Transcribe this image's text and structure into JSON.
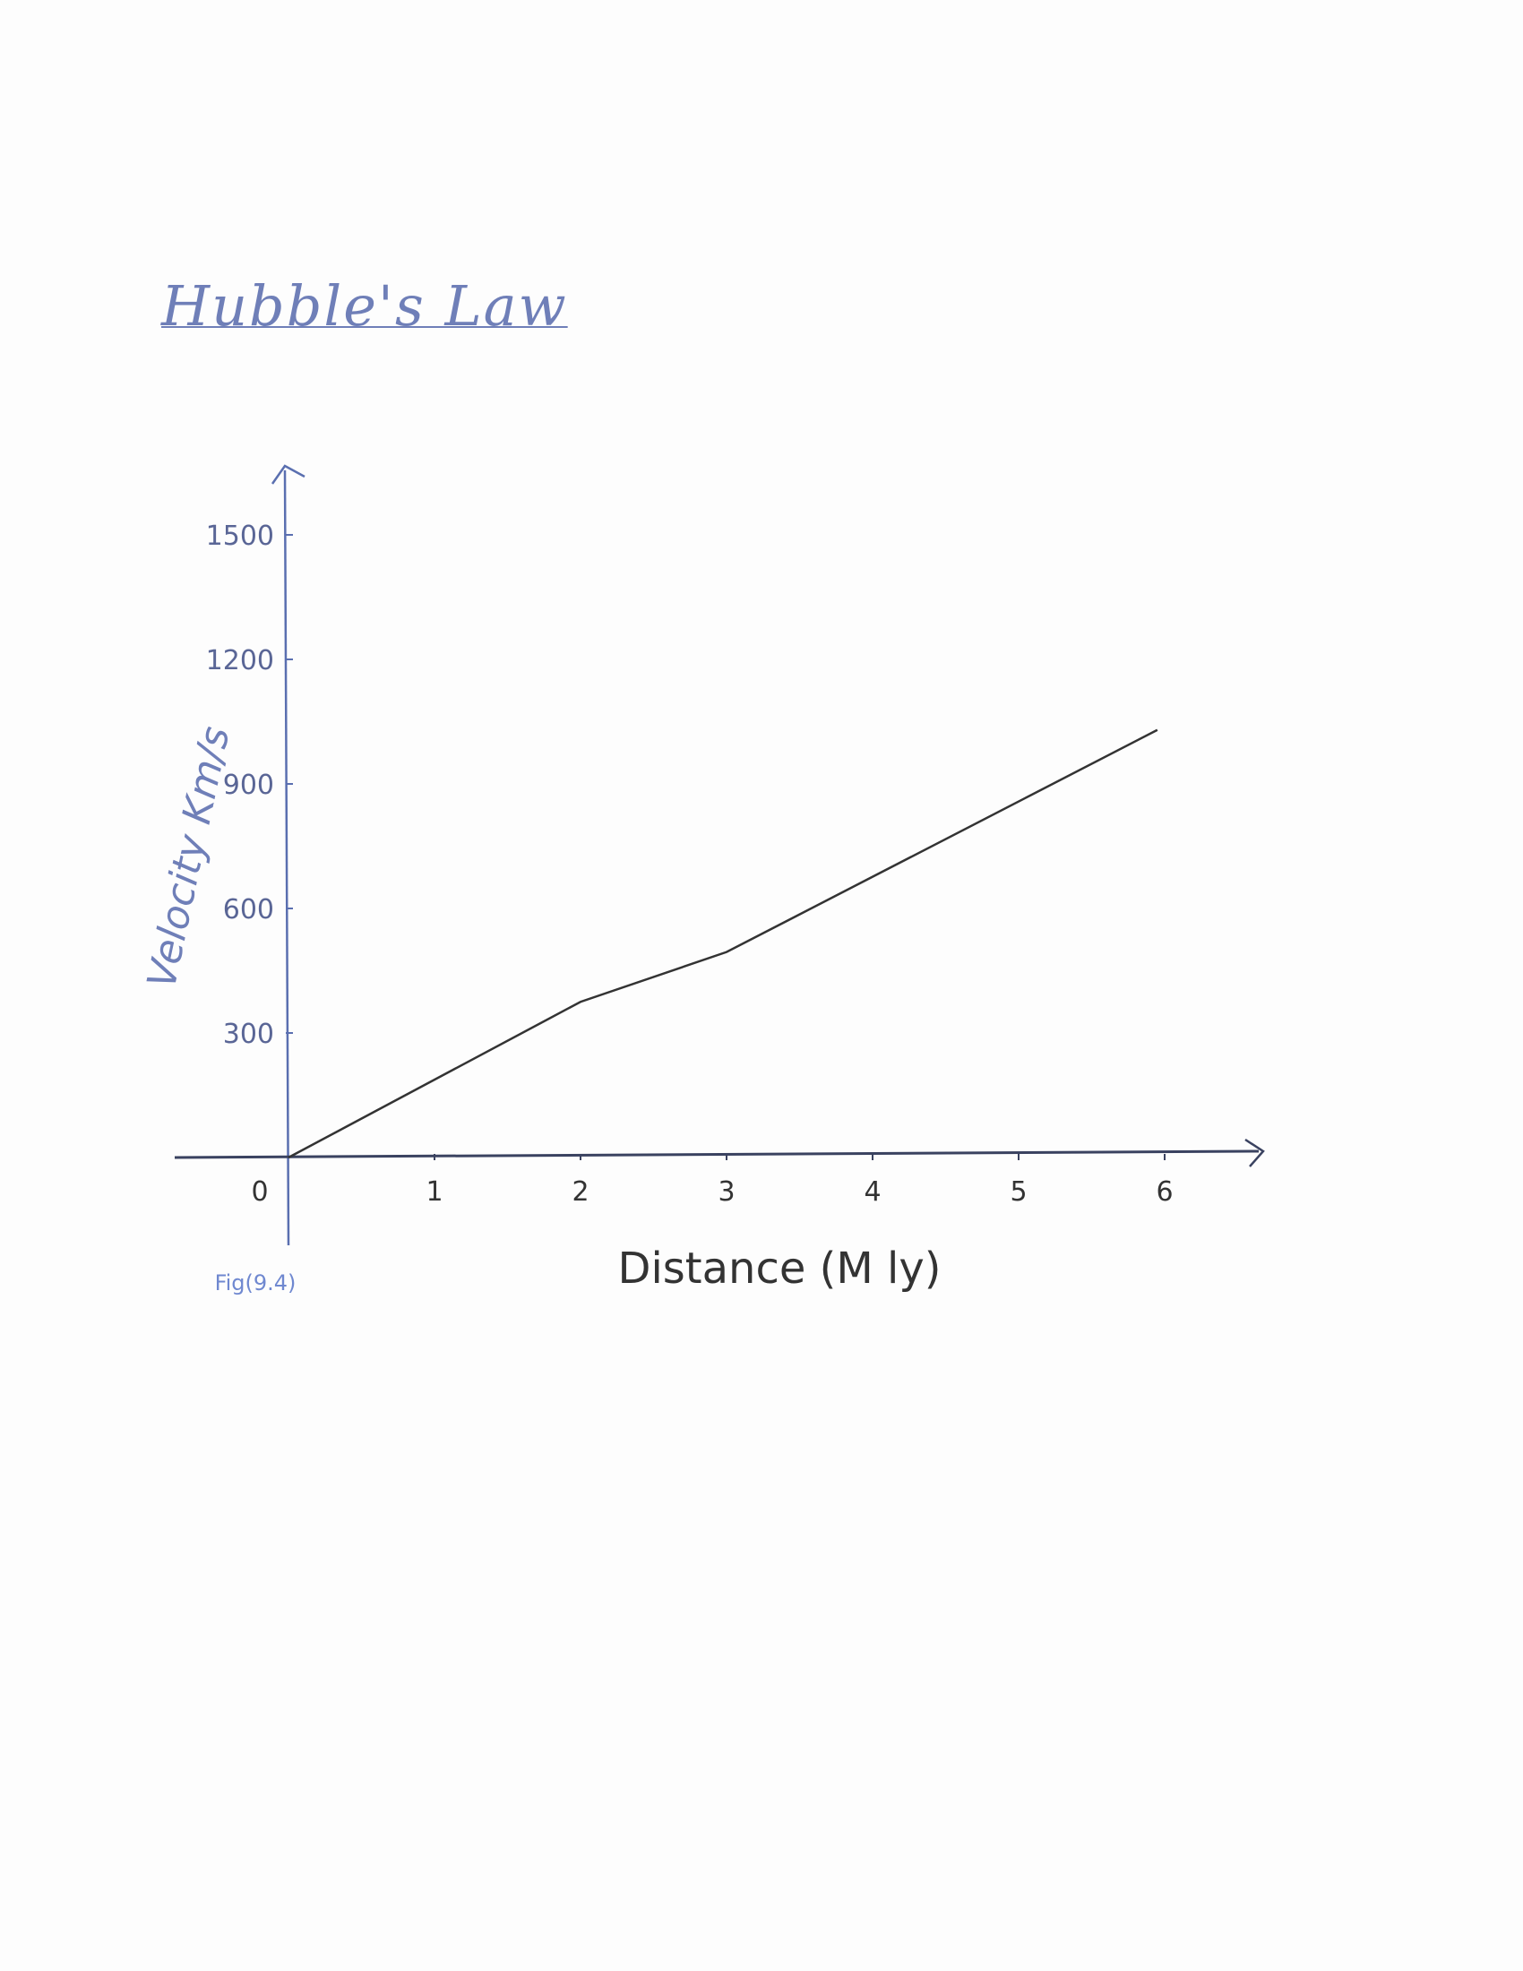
{
  "chart_data": {
    "type": "line",
    "title": "Hubble's Law",
    "xlabel": "Distance (M ly)",
    "ylabel": "Velocity Km/s",
    "figure_label": "Fig(9.4)",
    "x_ticks": [
      "0",
      "1",
      "2",
      "3",
      "4",
      "5",
      "6"
    ],
    "y_ticks": [
      "300",
      "600",
      "900",
      "1200",
      "1500"
    ],
    "xlim": [
      0,
      6
    ],
    "ylim": [
      0,
      1500
    ],
    "grid": false,
    "series": [
      {
        "x": [
          0,
          2,
          3,
          5.95
        ],
        "y": [
          0,
          375,
          495,
          1030
        ],
        "color": "#333333"
      }
    ],
    "colors": {
      "axis": "#5a6fb0",
      "labels": "#6f7fb8",
      "line": "#333333"
    }
  }
}
